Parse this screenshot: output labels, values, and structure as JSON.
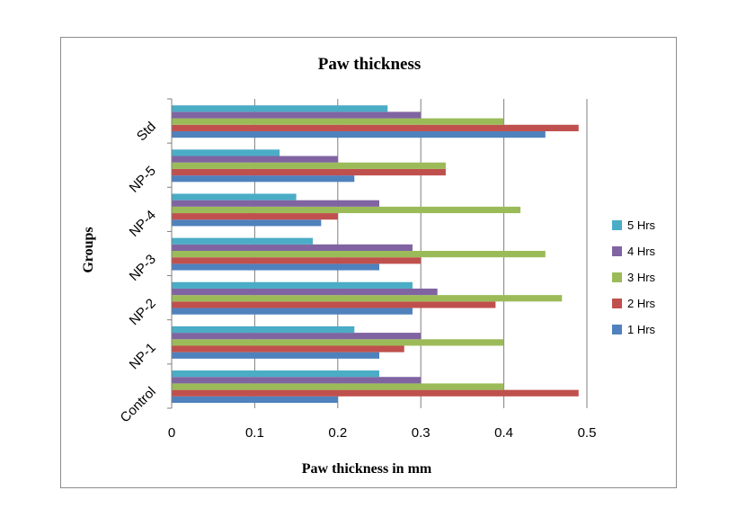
{
  "chart_data": {
    "type": "bar",
    "orientation": "horizontal",
    "title": "Paw thickness",
    "xlabel": "Paw thickness in mm",
    "ylabel": "Groups",
    "categories": [
      "Control",
      "NP-1",
      "NP-2",
      "NP-3",
      "NP-4",
      "NP-5",
      "Std"
    ],
    "xlim": [
      0,
      0.5
    ],
    "xticks": [
      "0",
      "0.1",
      "0.2",
      "0.3",
      "0.4",
      "0.5"
    ],
    "grid": true,
    "legend_position": "right",
    "series": [
      {
        "name": "1 Hrs",
        "color": "#4f81bd",
        "values": [
          0.2,
          0.25,
          0.29,
          0.25,
          0.18,
          0.22,
          0.45
        ]
      },
      {
        "name": "2 Hrs",
        "color": "#c0504d",
        "values": [
          0.49,
          0.28,
          0.39,
          0.3,
          0.2,
          0.33,
          0.49
        ]
      },
      {
        "name": "3 Hrs",
        "color": "#9bbb59",
        "values": [
          0.4,
          0.4,
          0.47,
          0.45,
          0.42,
          0.33,
          0.4
        ]
      },
      {
        "name": "4 Hrs",
        "color": "#8064a2",
        "values": [
          0.3,
          0.3,
          0.32,
          0.29,
          0.25,
          0.2,
          0.3
        ]
      },
      {
        "name": "5 Hrs",
        "color": "#4bacc6",
        "values": [
          0.25,
          0.22,
          0.29,
          0.17,
          0.15,
          0.13,
          0.26
        ]
      }
    ]
  }
}
